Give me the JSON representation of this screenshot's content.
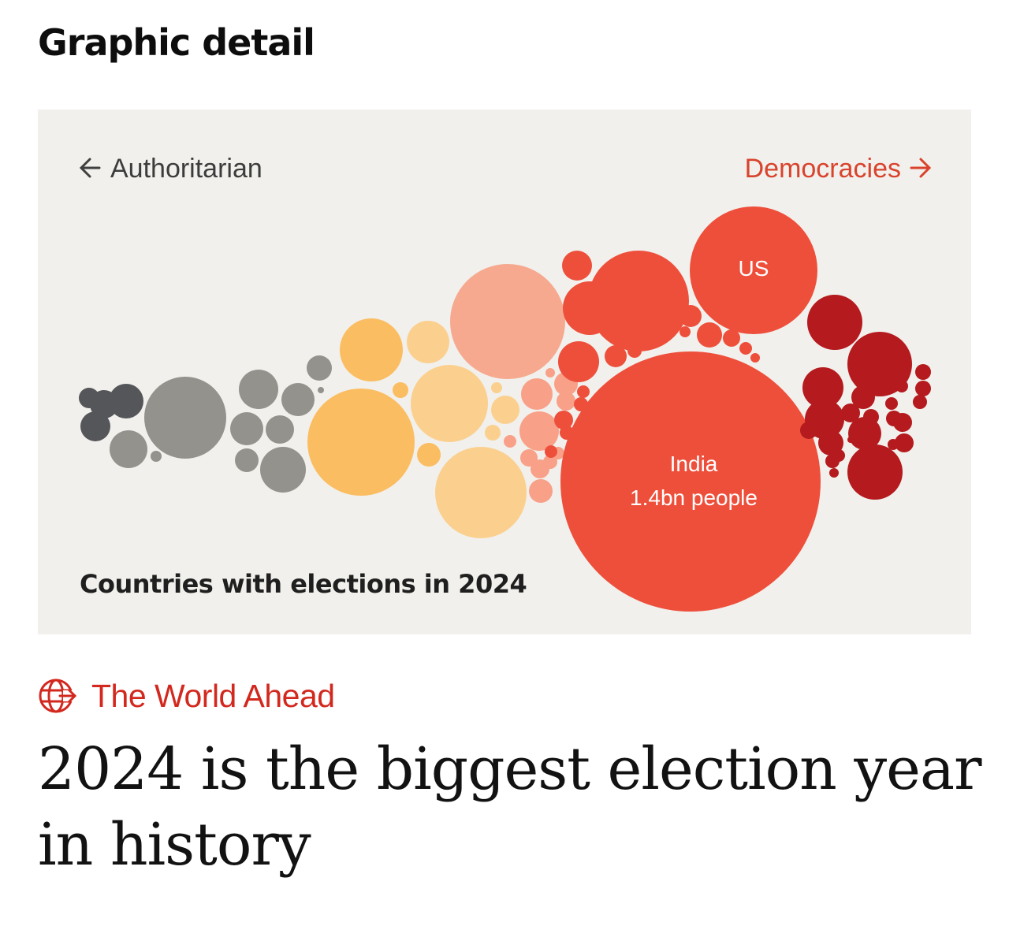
{
  "section": {
    "title": "Graphic detail"
  },
  "chart_data": {
    "type": "bubble",
    "axis": {
      "left_label": "Authoritarian",
      "right_label": "Democracies"
    },
    "caption": "Countries with elections in 2024",
    "annotations": [
      {
        "country": "India",
        "population": "1.4bn people"
      },
      {
        "country": "US"
      }
    ],
    "groups": [
      {
        "group": "most-authoritarian",
        "color": "#555659"
      },
      {
        "group": "authoritarian",
        "color": "#93928c"
      },
      {
        "group": "hybrid-low",
        "color": "#cbc8bd"
      },
      {
        "group": "hybrid-high",
        "color": "#fbbd61"
      },
      {
        "group": "flawed-low",
        "color": "#fbd08f"
      },
      {
        "group": "flawed-mid",
        "color": "#f6a98f"
      },
      {
        "group": "flawed-high",
        "color": "#f8a088"
      },
      {
        "group": "flawed-democracy",
        "color": "#ee4f3b"
      },
      {
        "group": "full-democracy",
        "color": "#b41a1e"
      }
    ]
  },
  "kicker": {
    "label": "The World Ahead",
    "icon": "globe-arrow-icon",
    "color": "#d2281e"
  },
  "headline": {
    "text": "2024 is the biggest election year in history"
  }
}
